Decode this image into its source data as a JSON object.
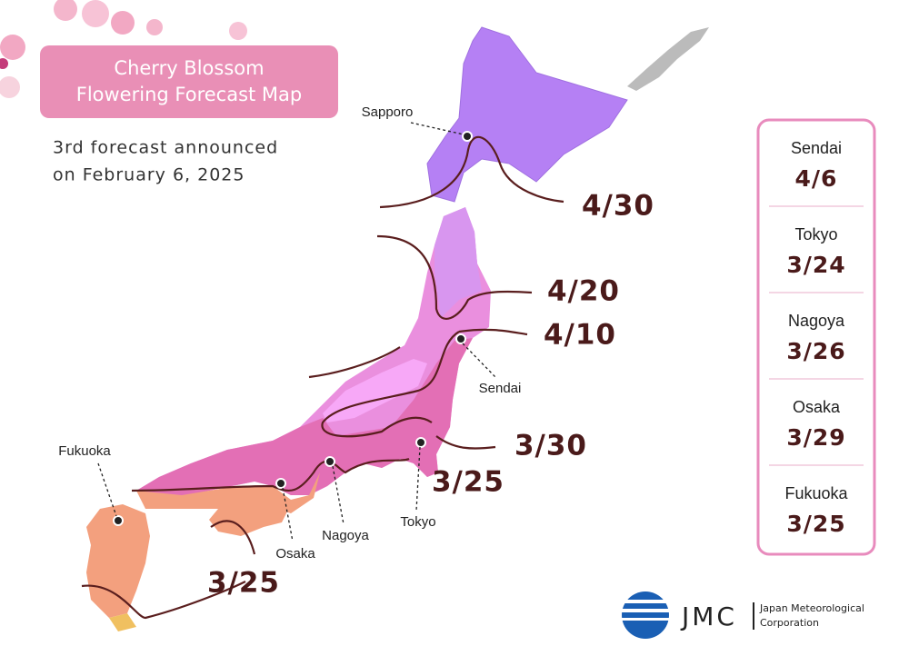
{
  "title_lines": [
    "Cherry Blossom",
    "Flowering Forecast Map"
  ],
  "subtitle_lines": [
    "3rd forecast announced",
    "on February 6, 2025"
  ],
  "isolines": [
    {
      "label": "4/30"
    },
    {
      "label": "4/20"
    },
    {
      "label": "4/10"
    },
    {
      "label": "3/30"
    },
    {
      "label": "3/25"
    },
    {
      "label": "3/25"
    }
  ],
  "cities": [
    "Sapporo",
    "Sendai",
    "Fukuoka",
    "Osaka",
    "Nagoya",
    "Tokyo"
  ],
  "panel": [
    {
      "city": "Sendai",
      "date": "4/6"
    },
    {
      "city": "Tokyo",
      "date": "3/24"
    },
    {
      "city": "Nagoya",
      "date": "3/26"
    },
    {
      "city": "Osaka",
      "date": "3/29"
    },
    {
      "city": "Fukuoka",
      "date": "3/25"
    }
  ],
  "logo": {
    "abbr": "JMC",
    "name_lines": [
      "Japan Meteorological",
      "Corporation"
    ]
  }
}
